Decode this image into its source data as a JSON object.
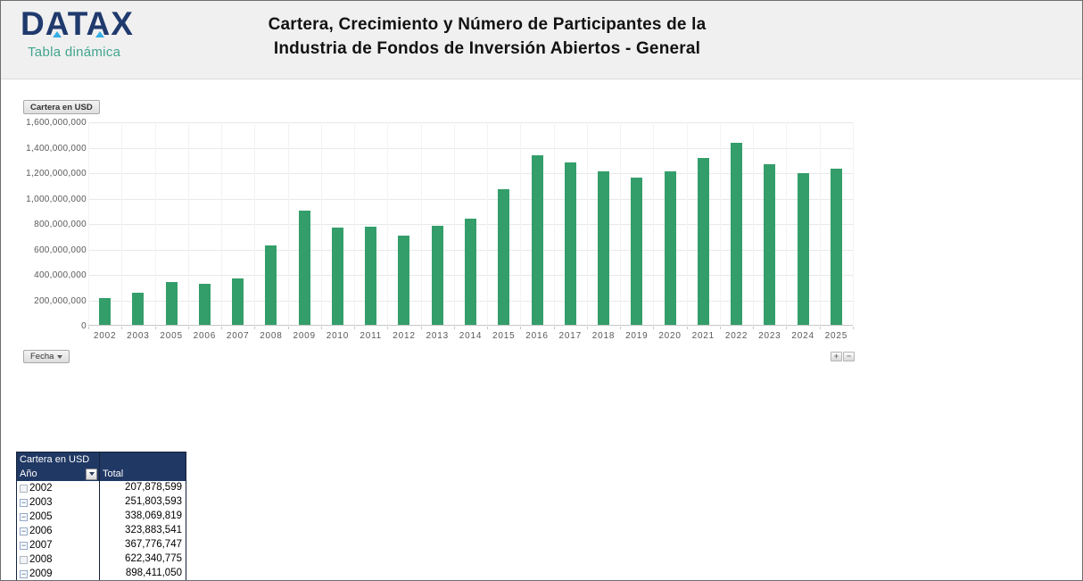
{
  "header": {
    "logo": "DATAX",
    "logo_tagline": "Tabla dinámica",
    "title_line1": "Cartera, Crecimiento y Número de Participantes de la",
    "title_line2": "Industria de Fondos de Inversión Abiertos - General"
  },
  "chart_controls": {
    "value_field_button": "Cartera en USD",
    "axis_field_button": "Fecha",
    "expand_button": "+",
    "collapse_button": "−"
  },
  "chart_data": {
    "type": "bar",
    "title": "Cartera en USD",
    "series_name": "Cartera en USD",
    "categories": [
      "2002",
      "2003",
      "2005",
      "2006",
      "2007",
      "2008",
      "2009",
      "2010",
      "2011",
      "2012",
      "2013",
      "2014",
      "2015",
      "2016",
      "2017",
      "2018",
      "2019",
      "2020",
      "2021",
      "2022",
      "2023",
      "2024",
      "2025"
    ],
    "values": [
      207878599,
      251803593,
      338069819,
      323883541,
      367776747,
      622340775,
      898411050,
      765000000,
      775000000,
      700000000,
      780000000,
      835000000,
      1070000000,
      1330000000,
      1275000000,
      1210000000,
      1160000000,
      1205000000,
      1315000000,
      1430000000,
      1260000000,
      1190000000,
      1225000000
    ],
    "ylim": [
      0,
      1600000000
    ],
    "ytick_interval": 200000000,
    "ytick_labels": [
      "1,600,000,000",
      "1,400,000,000",
      "1,200,000,000",
      "1,000,000,000",
      "800,000,000",
      "600,000,000",
      "400,000,000",
      "200,000,000",
      "0"
    ],
    "xlabel": "Fecha",
    "ylabel": "",
    "grid": true,
    "legend": "none",
    "bar_color": "#349E6A"
  },
  "pivot_table": {
    "title": "Cartera en USD",
    "columns": [
      "Año",
      "Total"
    ],
    "rows": [
      {
        "year": "2002",
        "total": "207,878,599",
        "expander": "empty"
      },
      {
        "year": "2003",
        "total": "251,803,593",
        "expander": "minus"
      },
      {
        "year": "2005",
        "total": "338,069,819",
        "expander": "minus"
      },
      {
        "year": "2006",
        "total": "323,883,541",
        "expander": "minus"
      },
      {
        "year": "2007",
        "total": "367,776,747",
        "expander": "minus"
      },
      {
        "year": "2008",
        "total": "622,340,775",
        "expander": "empty"
      },
      {
        "year": "2009",
        "total": "898,411,050",
        "expander": "minus"
      }
    ]
  },
  "icons": {
    "dropdown_arrow": "▼",
    "collapse_minus": "−",
    "expand_plus": "+"
  },
  "colors": {
    "bar_green": "#349E6A",
    "table_header_navy": "#203864",
    "logo_navy": "#1F3A6D",
    "logo_accent_cyan": "#35AEE3",
    "tagline_teal": "#41A58C",
    "header_band_gray": "#F0F0F0",
    "axis_text_gray": "#595959"
  }
}
